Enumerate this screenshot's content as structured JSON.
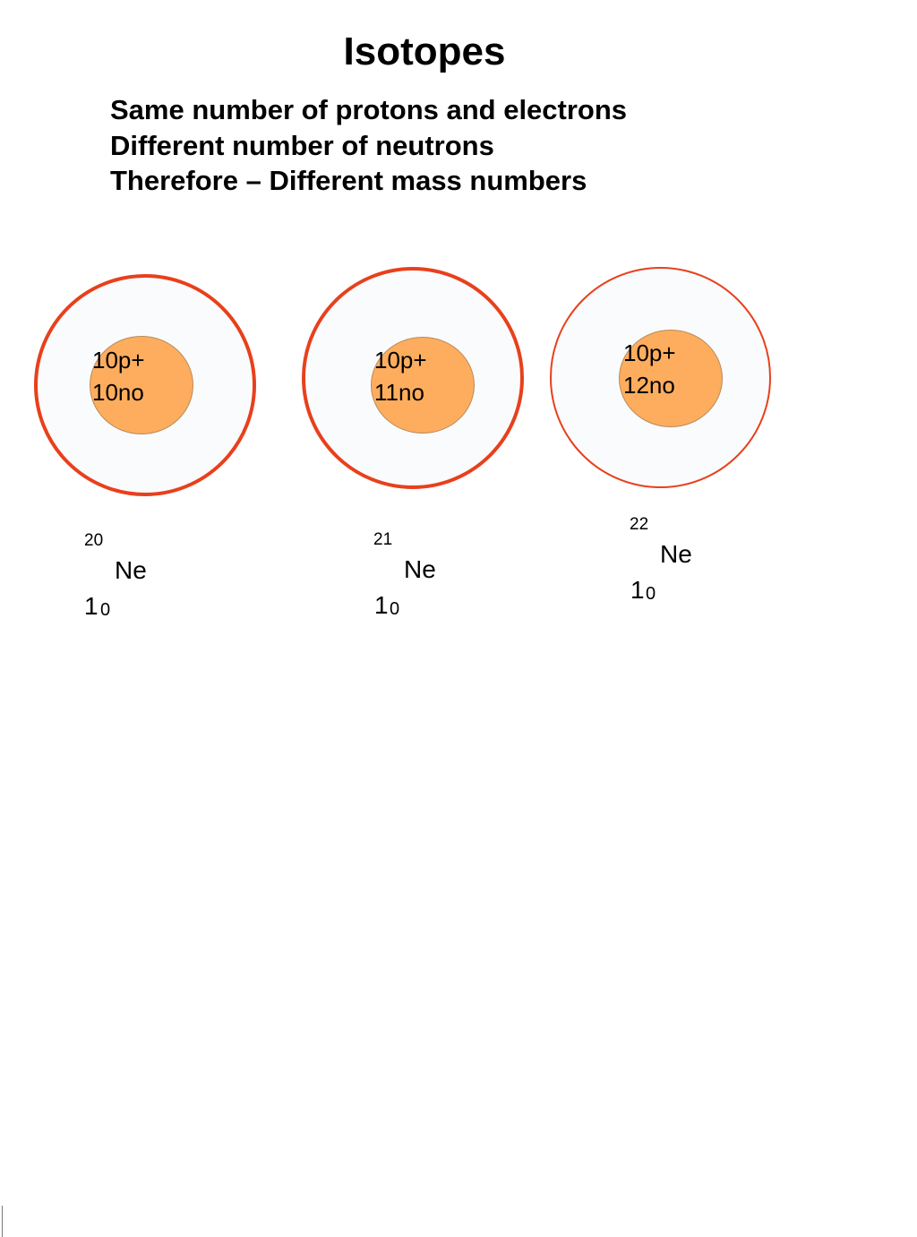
{
  "title": "Isotopes",
  "bullets": [
    "Same number of protons and electrons",
    "Different number of neutrons",
    "Therefore – Different mass numbers"
  ],
  "colors": {
    "shell_border": "#e8401c",
    "shell_fill": "#fafbfd",
    "nucleus_fill": "#fdad5d"
  },
  "atoms": [
    {
      "protons_label": "10p+",
      "neutrons_label": "10no",
      "symbol": {
        "mass_number": "20",
        "element": "Ne",
        "atomic_main": "1",
        "atomic_sub": "0"
      }
    },
    {
      "protons_label": "10p+",
      "neutrons_label": "11no",
      "symbol": {
        "mass_number": "21",
        "element": "Ne",
        "atomic_main": "1",
        "atomic_sub": "0"
      }
    },
    {
      "protons_label": "10p+",
      "neutrons_label": "12no",
      "symbol": {
        "mass_number": "22",
        "element": "Ne",
        "atomic_main": "1",
        "atomic_sub": "0"
      }
    }
  ]
}
